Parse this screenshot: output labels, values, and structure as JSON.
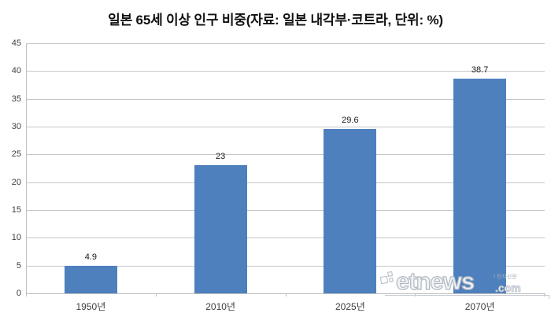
{
  "title": "일본 65세 이상 인구 비중(자료: 일본 내각부·코트라, 단위: %)",
  "chart_data": {
    "type": "bar",
    "title": "일본 65세 이상 인구 비중",
    "source_note": "자료: 일본 내각부·코트라",
    "unit": "%",
    "categories": [
      "1950년",
      "2010년",
      "2025년",
      "2070년"
    ],
    "values": [
      4.9,
      23,
      29.6,
      38.7
    ],
    "value_labels": [
      "4.9",
      "23",
      "29.6",
      "38.7"
    ],
    "xlabel": "",
    "ylabel": "",
    "ylim": [
      0,
      45
    ],
    "yticks": [
      0,
      5,
      10,
      15,
      20,
      25,
      30,
      35,
      40,
      45
    ],
    "grid": true,
    "legend": false,
    "bar_color": "#4E80BD",
    "gridline_color": "#C6C6C6",
    "axis_color": "#BFBFBF",
    "tick_label_color": "#3F3F3F"
  },
  "watermark": {
    "brand": "etnews",
    "domain_suffix": ".com",
    "tagline": "/ 전자신문"
  }
}
